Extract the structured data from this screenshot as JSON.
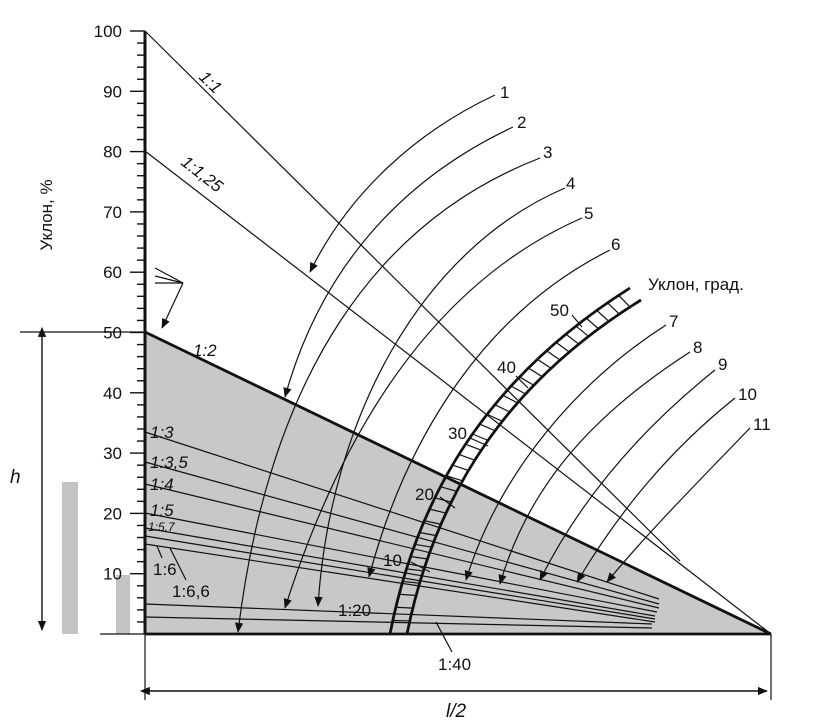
{
  "y_axis": {
    "label": "Уклон, %",
    "ticks": [
      "100",
      "90",
      "80",
      "70",
      "60",
      "50",
      "40",
      "30",
      "20",
      "10"
    ]
  },
  "angle_scale": {
    "title": "Уклон, град.",
    "ticks": [
      "10",
      "20",
      "30",
      "40",
      "50"
    ]
  },
  "roof_slopes": {
    "s1_1": "1:1",
    "s1_1_25": "1:1,25",
    "s1_2": "1:2",
    "s1_3": "1:3",
    "s1_3_5": "1:3,5",
    "s1_4": "1:4",
    "s1_5": "1:5",
    "s1_5_7": "1:5,7",
    "s1_6": "1:6",
    "s1_6_6": "1:6,6",
    "s1_20": "1:20",
    "s1_40": "1:40"
  },
  "curve_numbers": [
    "1",
    "2",
    "3",
    "4",
    "5",
    "6",
    "7",
    "8",
    "9",
    "10",
    "11"
  ],
  "dimensions": {
    "height": "h",
    "half_span": "l/2"
  },
  "colors": {
    "fill": "#c8c8c8",
    "line": "#111111",
    "bar": "#c4c4c4"
  }
}
